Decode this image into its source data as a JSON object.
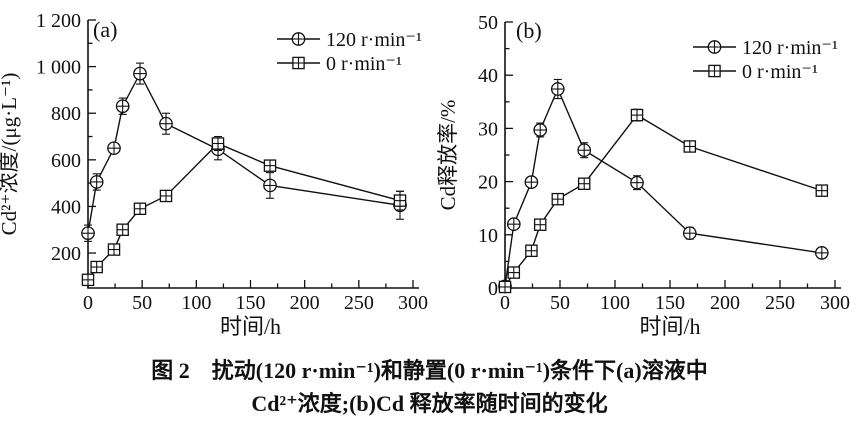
{
  "page": {
    "background_color": "#ffffff",
    "line_color": "#111111"
  },
  "caption": {
    "line1": "图 2　扰动(120 r·min⁻¹)和静置(0 r·min⁻¹)条件下(a)溶液中",
    "line2": "Cd²⁺浓度;(b)Cd 释放率随时间的变化"
  },
  "chart_data": [
    {
      "type": "line",
      "panel_label": "(a)",
      "xlabel": "时间/h",
      "ylabel": "Cd²⁺浓度/(μg·L⁻¹)",
      "xlim": [
        0,
        300
      ],
      "ylim": [
        50,
        1200
      ],
      "xticks": [
        0,
        50,
        100,
        150,
        200,
        250,
        300
      ],
      "xtick_labels": [
        "0",
        "50",
        "100",
        "150",
        "200",
        "250",
        "300"
      ],
      "yticks": [
        200,
        400,
        600,
        800,
        1000,
        1200
      ],
      "ytick_labels": [
        "200",
        "400",
        "600",
        "800",
        "1 000",
        "1 200"
      ],
      "x_minor_step": 25,
      "y_minor_step": 100,
      "grid": false,
      "legend_position": "top-right",
      "x": [
        0,
        8,
        24,
        32,
        48,
        72,
        120,
        168,
        288
      ],
      "series": [
        {
          "name": "120 r·min⁻¹",
          "marker": "circle-plus",
          "values": [
            285,
            505,
            650,
            830,
            970,
            755,
            645,
            490,
            405
          ],
          "errors": [
            35,
            35,
            22,
            35,
            45,
            45,
            45,
            55,
            60
          ]
        },
        {
          "name": "0 r·min⁻¹",
          "marker": "square-plus",
          "values": [
            85,
            140,
            215,
            300,
            390,
            445,
            670,
            575,
            425
          ],
          "errors": [
            15,
            12,
            18,
            15,
            20,
            20,
            30,
            22,
            40
          ]
        }
      ]
    },
    {
      "type": "line",
      "panel_label": "(b)",
      "xlabel": "时间/h",
      "ylabel": "Cd释放率/%",
      "xlim": [
        0,
        300
      ],
      "ylim": [
        0,
        50
      ],
      "xticks": [
        0,
        50,
        100,
        150,
        200,
        250,
        300
      ],
      "xtick_labels": [
        "0",
        "50",
        "100",
        "150",
        "200",
        "250",
        "300"
      ],
      "yticks": [
        0,
        10,
        20,
        30,
        40,
        50
      ],
      "ytick_labels": [
        "0",
        "10",
        "20",
        "30",
        "40",
        "50"
      ],
      "x_minor_step": 25,
      "y_minor_step": 5,
      "grid": false,
      "legend_position": "top-right",
      "x": [
        0,
        8,
        24,
        32,
        48,
        72,
        120,
        168,
        288
      ],
      "series": [
        {
          "name": "120 r·min⁻¹",
          "marker": "circle-plus",
          "values": [
            0.3,
            12.0,
            19.9,
            29.7,
            37.4,
            25.9,
            19.8,
            10.3,
            6.6
          ],
          "errors": [
            0.5,
            0.7,
            0.6,
            1.3,
            1.8,
            1.4,
            1.3,
            1.1,
            0.5
          ]
        },
        {
          "name": "0 r·min⁻¹",
          "marker": "square-plus",
          "values": [
            0.2,
            2.9,
            7.0,
            11.9,
            16.7,
            19.6,
            32.5,
            26.6,
            18.3
          ],
          "errors": [
            0.4,
            0.5,
            0.9,
            0.9,
            0.7,
            0.8,
            1.1,
            0.7,
            0.9
          ]
        }
      ]
    }
  ]
}
